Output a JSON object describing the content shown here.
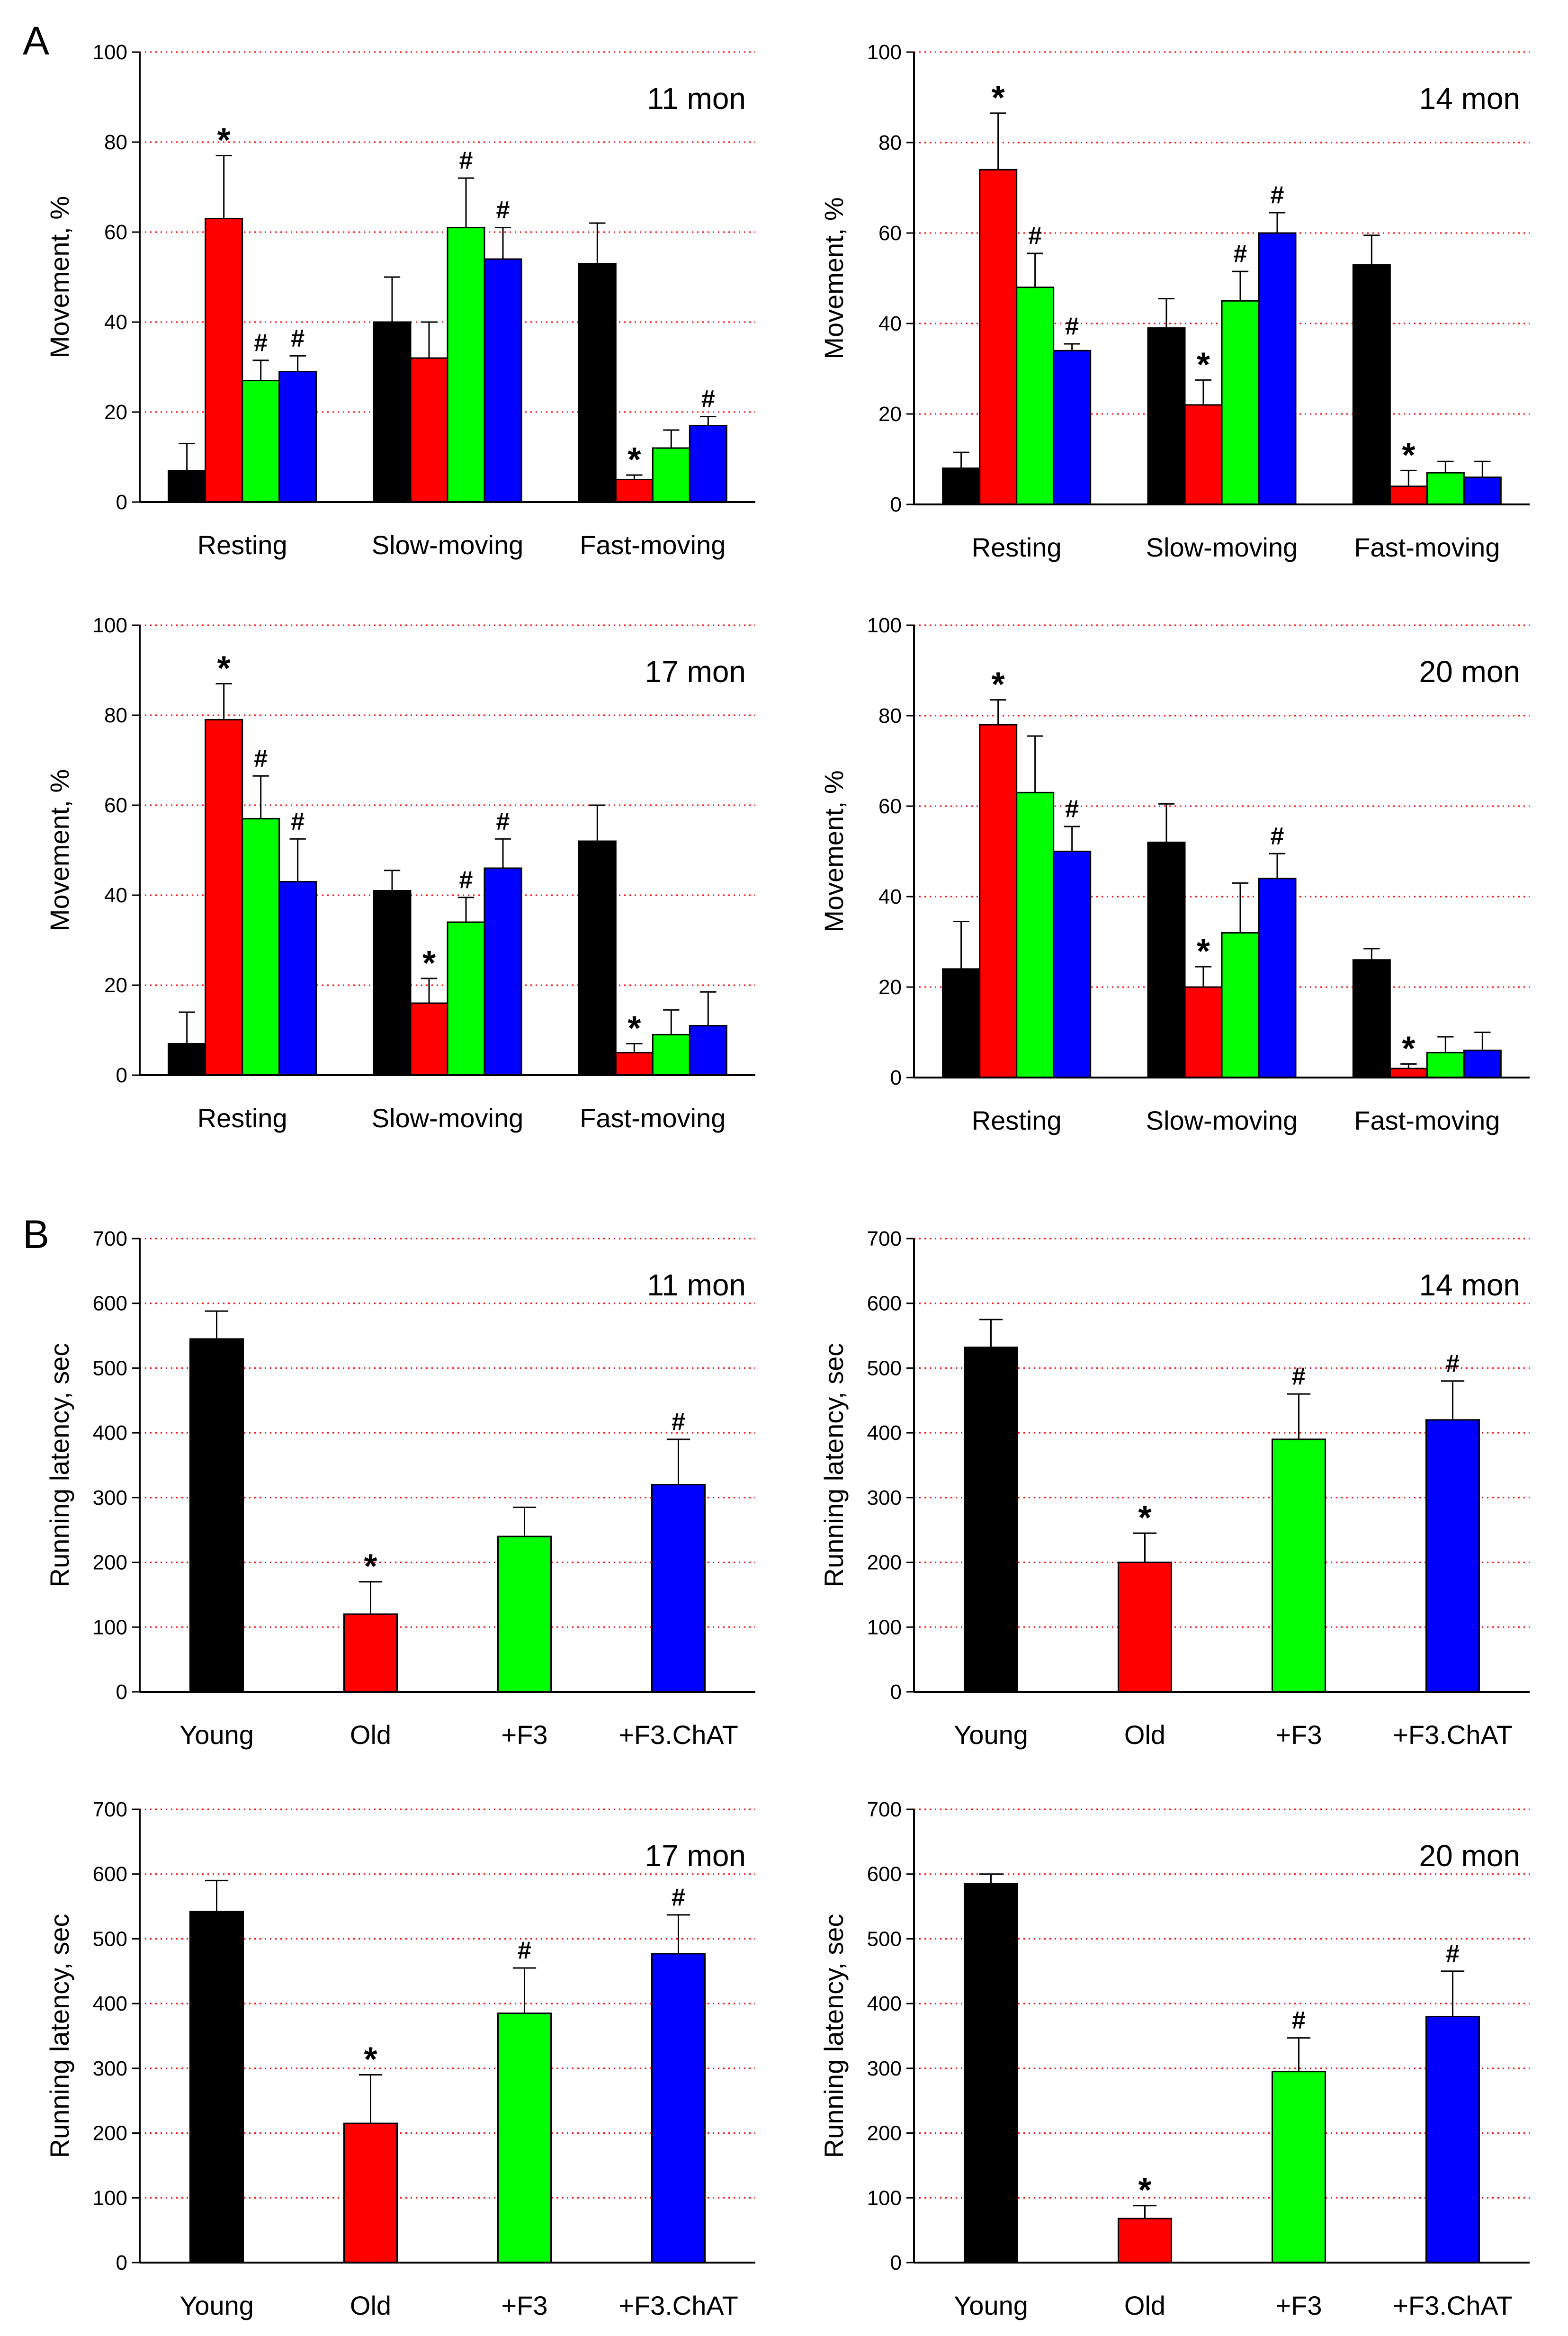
{
  "panel_labels": [
    "A",
    "B"
  ],
  "colors": {
    "young": "#000000",
    "old": "#ff0000",
    "f3": "#00ff00",
    "f3chat": "#0000ff",
    "grid": "#ff0000"
  },
  "chart_data": [
    {
      "id": "a1",
      "panel": "A",
      "type": "bar",
      "title": "11 mon",
      "ylabel": "Movement, %",
      "ylim": [
        0,
        100
      ],
      "yticks": [
        0,
        20,
        40,
        60,
        80,
        100
      ],
      "categories": [
        "Resting",
        "Slow-moving",
        "Fast-moving"
      ],
      "series": [
        {
          "name": "Young",
          "color": "#000000",
          "values": [
            7,
            40,
            53
          ],
          "errors": [
            6,
            10,
            9
          ],
          "marks": [
            "",
            "",
            ""
          ]
        },
        {
          "name": "Old",
          "color": "#ff0000",
          "values": [
            63,
            32,
            5
          ],
          "errors": [
            14,
            8,
            1
          ],
          "marks": [
            "*",
            "",
            "*"
          ]
        },
        {
          "name": "+F3",
          "color": "#00ff00",
          "values": [
            27,
            61,
            12
          ],
          "errors": [
            4.5,
            11,
            4
          ],
          "marks": [
            "#",
            "#",
            ""
          ]
        },
        {
          "name": "+F3.ChAT",
          "color": "#0000ff",
          "values": [
            29,
            54,
            17
          ],
          "errors": [
            3.5,
            7,
            2
          ],
          "marks": [
            "#",
            "#",
            "#"
          ]
        }
      ]
    },
    {
      "id": "a2",
      "panel": "A",
      "type": "bar",
      "title": "14 mon",
      "ylabel": "Movement, %",
      "ylim": [
        0,
        100
      ],
      "yticks": [
        0,
        20,
        40,
        60,
        80,
        100
      ],
      "categories": [
        "Resting",
        "Slow-moving",
        "Fast-moving"
      ],
      "series": [
        {
          "name": "Young",
          "color": "#000000",
          "values": [
            8,
            39,
            53
          ],
          "errors": [
            3.5,
            6.5,
            6.5
          ],
          "marks": [
            "",
            "",
            ""
          ]
        },
        {
          "name": "Old",
          "color": "#ff0000",
          "values": [
            74,
            22,
            4
          ],
          "errors": [
            12.5,
            5.5,
            3.5
          ],
          "marks": [
            "*",
            "*",
            "*"
          ]
        },
        {
          "name": "+F3",
          "color": "#00ff00",
          "values": [
            48,
            45,
            7
          ],
          "errors": [
            7.5,
            6.5,
            2.5
          ],
          "marks": [
            "#",
            "#",
            ""
          ]
        },
        {
          "name": "+F3.ChAT",
          "color": "#0000ff",
          "values": [
            34,
            60,
            6
          ],
          "errors": [
            1.5,
            4.5,
            3.5
          ],
          "marks": [
            "#",
            "#",
            ""
          ]
        }
      ]
    },
    {
      "id": "a3",
      "panel": "A",
      "type": "bar",
      "title": "17 mon",
      "ylabel": "Movement, %",
      "ylim": [
        0,
        100
      ],
      "yticks": [
        0,
        20,
        40,
        60,
        80,
        100
      ],
      "categories": [
        "Resting",
        "Slow-moving",
        "Fast-moving"
      ],
      "series": [
        {
          "name": "Young",
          "color": "#000000",
          "values": [
            7,
            41,
            52
          ],
          "errors": [
            7,
            4.5,
            8
          ],
          "marks": [
            "",
            "",
            ""
          ]
        },
        {
          "name": "Old",
          "color": "#ff0000",
          "values": [
            79,
            16,
            5
          ],
          "errors": [
            8,
            5.5,
            2
          ],
          "marks": [
            "*",
            "*",
            "*"
          ]
        },
        {
          "name": "+F3",
          "color": "#00ff00",
          "values": [
            57,
            34,
            9
          ],
          "errors": [
            9.5,
            5.5,
            5.5
          ],
          "marks": [
            "#",
            "#",
            ""
          ]
        },
        {
          "name": "+F3.ChAT",
          "color": "#0000ff",
          "values": [
            43,
            46,
            11
          ],
          "errors": [
            9.5,
            6.5,
            7.5
          ],
          "marks": [
            "#",
            "#",
            ""
          ]
        }
      ]
    },
    {
      "id": "a4",
      "panel": "A",
      "type": "bar",
      "title": "20 mon",
      "ylabel": "Movement, %",
      "ylim": [
        0,
        100
      ],
      "yticks": [
        0,
        20,
        40,
        60,
        80,
        100
      ],
      "categories": [
        "Resting",
        "Slow-moving",
        "Fast-moving"
      ],
      "series": [
        {
          "name": "Young",
          "color": "#000000",
          "values": [
            24,
            52,
            26
          ],
          "errors": [
            10.5,
            8.5,
            2.5
          ],
          "marks": [
            "",
            "",
            ""
          ]
        },
        {
          "name": "Old",
          "color": "#ff0000",
          "values": [
            78,
            20,
            2
          ],
          "errors": [
            5.5,
            4.5,
            1
          ],
          "marks": [
            "*",
            "*",
            "*"
          ]
        },
        {
          "name": "+F3",
          "color": "#00ff00",
          "values": [
            63,
            32,
            5.5
          ],
          "errors": [
            12.5,
            11,
            3.5
          ],
          "marks": [
            "",
            "",
            ""
          ]
        },
        {
          "name": "+F3.ChAT",
          "color": "#0000ff",
          "values": [
            50,
            44,
            6
          ],
          "errors": [
            5.5,
            5.5,
            4
          ],
          "marks": [
            "#",
            "#",
            ""
          ]
        }
      ]
    },
    {
      "id": "b1",
      "panel": "B",
      "type": "bar",
      "title": "11 mon",
      "ylabel": "Running latency, sec",
      "ylim": [
        0,
        700
      ],
      "yticks": [
        0,
        100,
        200,
        300,
        400,
        500,
        600,
        700
      ],
      "categories": [
        "Young",
        "Old",
        "+F3",
        "+F3.ChAT"
      ],
      "series": [
        {
          "name": "Running latency",
          "colors": [
            "#000000",
            "#ff0000",
            "#00ff00",
            "#0000ff"
          ],
          "values": [
            545,
            120,
            240,
            320
          ],
          "errors": [
            43,
            50,
            45,
            70
          ],
          "marks": [
            "",
            "*",
            "",
            "#"
          ]
        }
      ]
    },
    {
      "id": "b2",
      "panel": "B",
      "type": "bar",
      "title": "14 mon",
      "ylabel": "Running latency, sec",
      "ylim": [
        0,
        700
      ],
      "yticks": [
        0,
        100,
        200,
        300,
        400,
        500,
        600,
        700
      ],
      "categories": [
        "Young",
        "Old",
        "+F3",
        "+F3.ChAT"
      ],
      "series": [
        {
          "name": "Running latency",
          "colors": [
            "#000000",
            "#ff0000",
            "#00ff00",
            "#0000ff"
          ],
          "values": [
            532,
            200,
            390,
            420
          ],
          "errors": [
            43,
            45,
            70,
            60
          ],
          "marks": [
            "",
            "*",
            "#",
            "#"
          ]
        }
      ]
    },
    {
      "id": "b3",
      "panel": "B",
      "type": "bar",
      "title": "17 mon",
      "ylabel": "Running latency, sec",
      "ylim": [
        0,
        700
      ],
      "yticks": [
        0,
        100,
        200,
        300,
        400,
        500,
        600,
        700
      ],
      "categories": [
        "Young",
        "Old",
        "+F3",
        "+F3.ChAT"
      ],
      "series": [
        {
          "name": "Running latency",
          "colors": [
            "#000000",
            "#ff0000",
            "#00ff00",
            "#0000ff"
          ],
          "values": [
            542,
            215,
            385,
            477
          ],
          "errors": [
            48,
            75,
            70,
            60
          ],
          "marks": [
            "",
            "*",
            "#",
            "#"
          ]
        }
      ]
    },
    {
      "id": "b4",
      "panel": "B",
      "type": "bar",
      "title": "20 mon",
      "ylabel": "Running latency, sec",
      "ylim": [
        0,
        700
      ],
      "yticks": [
        0,
        100,
        200,
        300,
        400,
        500,
        600,
        700
      ],
      "categories": [
        "Young",
        "Old",
        "+F3",
        "+F3.ChAT"
      ],
      "series": [
        {
          "name": "Running latency",
          "colors": [
            "#000000",
            "#ff0000",
            "#00ff00",
            "#0000ff"
          ],
          "values": [
            585,
            68,
            295,
            380
          ],
          "errors": [
            15,
            20,
            52,
            70
          ],
          "marks": [
            "",
            "*",
            "#",
            "#"
          ]
        }
      ]
    }
  ]
}
